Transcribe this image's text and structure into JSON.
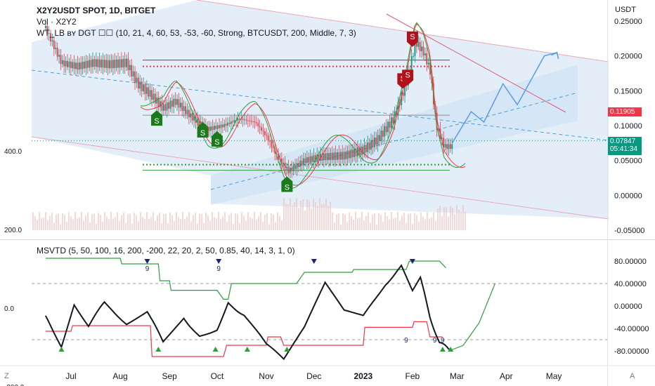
{
  "header": {
    "symbol": "X2Y2USDT SPOT, 1D, BITGET",
    "volume": "Vol · X2Y2",
    "indicator": "WT_LB ʙʏ DGT ☐☐ (10, 21, 4, 60, 53, -53, -60, Strong, BTCUSDT, 200, Middle, 7, 3)"
  },
  "lower_header": "MSVTD (5, 50, 100, 16, 200, -200, 22, 20, 2, 50, 0.85, 40, 14, 3, 1, 0)",
  "currency": "USDT",
  "price_tags": {
    "red_value": "0.11905",
    "green_value": "0.07847",
    "countdown": "05:41:34",
    "red_color": "#f23645",
    "green_color": "#089981"
  },
  "bottom_icons": {
    "left": "Z",
    "right": "A"
  },
  "chart_data": [
    {
      "type": "candlestick",
      "title": "X2Y2USDT SPOT, 1D, BITGET",
      "ylabel": "USDT",
      "y_ticks": [
        "0.25000",
        "0.20000",
        "0.15000",
        "0.10000",
        "0.05000",
        "0.00000",
        "-0.05000"
      ],
      "y_tick_values": [
        0.25,
        0.2,
        0.15,
        0.1,
        0.05,
        0.0,
        -0.05
      ],
      "ylim": [
        -0.07,
        0.27
      ],
      "x_ticks": [
        "Jul",
        "Aug",
        "Sep",
        "Oct",
        "Nov",
        "Dec",
        "2023",
        "Feb",
        "Mar",
        "Apr",
        "May"
      ],
      "close_path": [
        [
          "Jun 15",
          0.24
        ],
        [
          "Jun 25",
          0.19
        ],
        [
          "Jul 5",
          0.185
        ],
        [
          "Jul 15",
          0.19
        ],
        [
          "Jul 25",
          0.188
        ],
        [
          "Aug 5",
          0.19
        ],
        [
          "Aug 12",
          0.16
        ],
        [
          "Aug 20",
          0.145
        ],
        [
          "Aug 28",
          0.125
        ],
        [
          "Sep 5",
          0.135
        ],
        [
          "Sep 15",
          0.112
        ],
        [
          "Sep 25",
          0.095
        ],
        [
          "Oct 5",
          0.1
        ],
        [
          "Oct 15",
          0.11
        ],
        [
          "Oct 25",
          0.105
        ],
        [
          "Nov 1",
          0.085
        ],
        [
          "Nov 8",
          0.055
        ],
        [
          "Nov 15",
          0.035
        ],
        [
          "Nov 25",
          0.05
        ],
        [
          "Dec 5",
          0.055
        ],
        [
          "Dec 20",
          0.057
        ],
        [
          "Jan 1",
          0.065
        ],
        [
          "Jan 10",
          0.08
        ],
        [
          "Jan 20",
          0.11
        ],
        [
          "Jan 28",
          0.16
        ],
        [
          "Feb 3",
          0.22
        ],
        [
          "Feb 8",
          0.205
        ],
        [
          "Feb 12",
          0.18
        ],
        [
          "Feb 16",
          0.1
        ],
        [
          "Feb 21",
          0.07
        ],
        [
          "Feb 26",
          0.07
        ]
      ],
      "lines": {
        "red_dotted": 0.185,
        "red_solid": 0.194,
        "grey": 0.115,
        "green_dotted": 0.044,
        "green_solid": 0.036
      },
      "projection": [
        [
          "Feb 26",
          0.075
        ],
        [
          "Mar 10",
          0.12
        ],
        [
          "Mar 18",
          0.105
        ],
        [
          "Mar 30",
          0.16
        ],
        [
          "Apr 8",
          0.13
        ],
        [
          "Apr 25",
          0.2
        ],
        [
          "May 3",
          0.205
        ]
      ],
      "markers": {
        "S_green": [
          [
            "Aug 24",
            0.115
          ],
          [
            "Sep 22",
            0.098
          ],
          [
            "Oct 1",
            0.085
          ],
          [
            "Nov 14",
            0.02
          ]
        ],
        "S_red": [
          [
            "Feb 1",
            0.22
          ],
          [
            "Jan 26",
            0.16
          ],
          [
            "Jan 29",
            0.165
          ]
        ],
        "marker_text": "S"
      },
      "volume_bars": true
    },
    {
      "type": "line",
      "title": "MSVTD (5, 50, 100, 16, 200, -200, 22, 20, 2, 50, 0.85, 40, 14, 3, 1, 0)",
      "left_ticks": [
        "400.0",
        "200.0",
        "0.0",
        "-200.0"
      ],
      "left_tick_values": [
        400,
        200,
        0,
        -200
      ],
      "right_ticks": [
        "80.00000",
        "40.00000",
        "0.00000",
        "-40.00000",
        "-80.00000"
      ],
      "right_tick_values": [
        80,
        40,
        0,
        -40,
        -80
      ],
      "ylim": [
        -100,
        100
      ],
      "series": [
        {
          "color": "#2e9e3a",
          "role": "upper band",
          "points": [
            [
              "Jun 15",
              85
            ],
            [
              "Aug 1",
              85
            ],
            [
              "Aug 2",
              75
            ],
            [
              "Aug 25",
              75
            ],
            [
              "Aug 26",
              45
            ],
            [
              "Sep 1",
              45
            ],
            [
              "Sep 2",
              28
            ],
            [
              "Oct 1",
              28
            ],
            [
              "Oct 5",
              12
            ],
            [
              "Oct 8",
              12
            ],
            [
              "Oct 10",
              40
            ],
            [
              "Nov 20",
              40
            ],
            [
              "Nov 25",
              60
            ],
            [
              "Dec 25",
              60
            ],
            [
              "Dec 26",
              65
            ],
            [
              "Jan 28",
              65
            ],
            [
              "Jan 30",
              80
            ],
            [
              "Feb 18",
              80
            ],
            [
              "Feb 22",
              68
            ]
          ]
        },
        {
          "color": "#f23645",
          "role": "lower band",
          "points": [
            [
              "Jun 15",
              -45
            ],
            [
              "Jul 1",
              -45
            ],
            [
              "Jul 2",
              -35
            ],
            [
              "Aug 20",
              -35
            ],
            [
              "Aug 21",
              -90
            ],
            [
              "Oct 5",
              -90
            ],
            [
              "Oct 7",
              -70
            ],
            [
              "Nov 1",
              -70
            ],
            [
              "Nov 2",
              -55
            ],
            [
              "Nov 10",
              -55
            ],
            [
              "Nov 12",
              -70
            ],
            [
              "Jan 1",
              -70
            ],
            [
              "Jan 2",
              -38
            ],
            [
              "Feb 1",
              -38
            ],
            [
              "Feb 2",
              -28
            ],
            [
              "Feb 10",
              -28
            ],
            [
              "Feb 12",
              -55
            ],
            [
              "Feb 20",
              -55
            ]
          ]
        },
        {
          "color": "#131722",
          "role": "oscillator",
          "points": [
            [
              "Jun 15",
              -20
            ],
            [
              "Jun 25",
              -70
            ],
            [
              "Jul 3",
              5
            ],
            [
              "Jul 12",
              -35
            ],
            [
              "Jul 22",
              5
            ],
            [
              "Aug 5",
              -30
            ],
            [
              "Aug 18",
              -10
            ],
            [
              "Aug 28",
              -65
            ],
            [
              "Sep 10",
              -20
            ],
            [
              "Sep 20",
              -55
            ],
            [
              "Oct 1",
              -40
            ],
            [
              "Oct 8",
              5
            ],
            [
              "Oct 18",
              -15
            ],
            [
              "Nov 1",
              -70
            ],
            [
              "Nov 12",
              -95
            ],
            [
              "Nov 25",
              -40
            ],
            [
              "Dec 8",
              40
            ],
            [
              "Dec 20",
              -10
            ],
            [
              "Jan 1",
              -20
            ],
            [
              "Jan 15",
              40
            ],
            [
              "Jan 25",
              70
            ],
            [
              "Feb 1",
              30
            ],
            [
              "Feb 6",
              50
            ],
            [
              "Feb 12",
              -20
            ],
            [
              "Feb 18",
              -65
            ],
            [
              "Feb 24",
              -78
            ]
          ]
        },
        {
          "color": "#2e9e3a",
          "role": "projection curve",
          "points": [
            [
              "Feb 24",
              -80
            ],
            [
              "Mar 5",
              -70
            ],
            [
              "Mar 15",
              -30
            ],
            [
              "Mar 25",
              40
            ]
          ]
        }
      ],
      "triangle_marks": {
        "count_label": "9"
      }
    }
  ]
}
